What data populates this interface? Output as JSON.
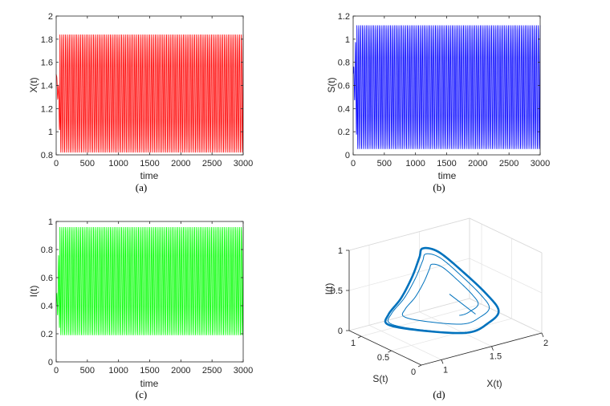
{
  "chart_data": [
    {
      "id": "a",
      "type": "line",
      "caption": "(a)",
      "xlabel": "time",
      "ylabel": "X(t)",
      "xlim": [
        0,
        3000
      ],
      "ylim": [
        0.8,
        2
      ],
      "xticks": [
        0,
        500,
        1000,
        1500,
        2000,
        2500,
        3000
      ],
      "yticks": [
        0.8,
        1,
        1.2,
        1.4,
        1.6,
        1.8,
        2
      ],
      "ytick_labels": [
        "0.8",
        "1",
        "1.2",
        "1.4",
        "1.6",
        "1.8",
        "2"
      ],
      "color": "#ff0000",
      "oscillation": {
        "min": 0.82,
        "max": 1.84,
        "period": 30,
        "start_value": 1.5,
        "transient_min": 0.95,
        "transient_max": 1.35
      }
    },
    {
      "id": "b",
      "type": "line",
      "caption": "(b)",
      "xlabel": "time",
      "ylabel": "S(t)",
      "xlim": [
        0,
        3000
      ],
      "ylim": [
        0,
        1.2
      ],
      "xticks": [
        0,
        500,
        1000,
        1500,
        2000,
        2500,
        3000
      ],
      "yticks": [
        0,
        0.2,
        0.4,
        0.6,
        0.8,
        1,
        1.2
      ],
      "ytick_labels": [
        "0",
        "0.2",
        "0.4",
        "0.6",
        "0.8",
        "1",
        "1.2"
      ],
      "color": "#0000ff",
      "oscillation": {
        "min": 0.05,
        "max": 1.12,
        "period": 30,
        "start_value": 0.7,
        "transient_min": 0.1,
        "transient_max": 1.14
      }
    },
    {
      "id": "c",
      "type": "line",
      "caption": "(c)",
      "xlabel": "time",
      "ylabel": "I(t)",
      "xlim": [
        0,
        3000
      ],
      "ylim": [
        0,
        1
      ],
      "xticks": [
        0,
        500,
        1000,
        1500,
        2000,
        2500,
        3000
      ],
      "yticks": [
        0,
        0.2,
        0.4,
        0.6,
        0.8,
        1
      ],
      "ytick_labels": [
        "0",
        "0.2",
        "0.4",
        "0.6",
        "0.8",
        "1"
      ],
      "color": "#00ff00",
      "oscillation": {
        "min": 0.19,
        "max": 0.96,
        "period": 30,
        "start_value": 0.4,
        "transient_min": 0.22,
        "transient_max": 0.97
      }
    },
    {
      "id": "d",
      "type": "line3d",
      "caption": "(d)",
      "xlabel": "X(t)",
      "ylabel": "S(t)",
      "zlabel": "I(t)",
      "xlim": [
        0.8,
        2
      ],
      "ylim": [
        0,
        1.2
      ],
      "zlim": [
        0,
        1
      ],
      "xticks": [
        1,
        1.5,
        2
      ],
      "xtick_labels": [
        "1",
        "1.5",
        "2"
      ],
      "yticks": [
        0,
        0.5,
        1
      ],
      "ytick_labels": [
        "0",
        "0.5",
        "1"
      ],
      "zticks": [
        0,
        0.5,
        1
      ],
      "ztick_labels": [
        "0",
        "0.5",
        "1"
      ],
      "color": "#0072bd"
    }
  ]
}
